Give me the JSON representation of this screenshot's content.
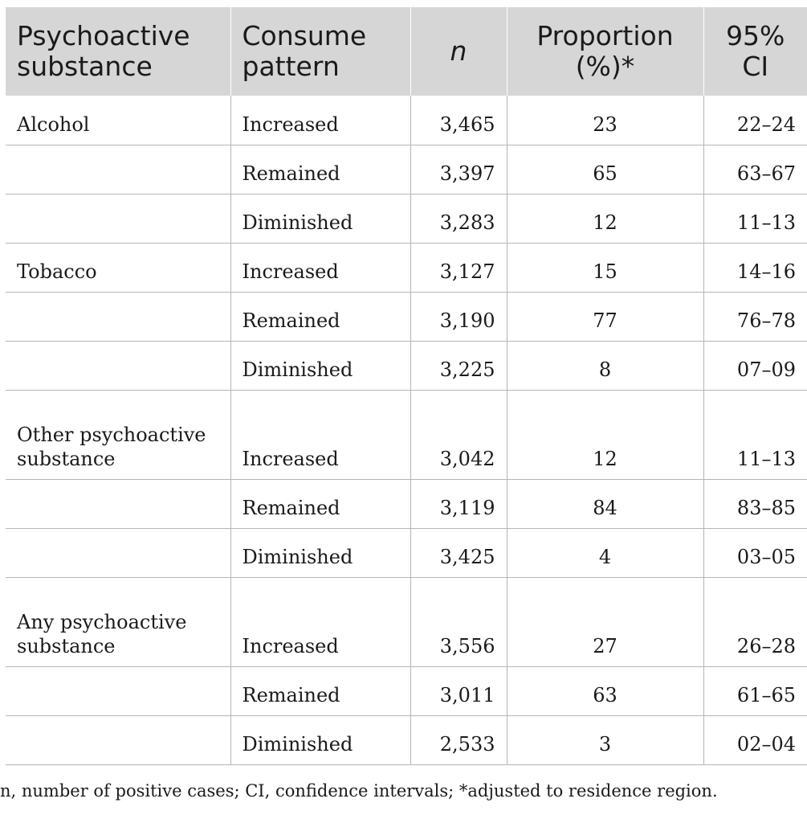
{
  "table": {
    "headers": [
      "Psychoactive substance",
      "Consume pattern",
      "n",
      "Proportion (%)*",
      "95% CI"
    ],
    "rows": [
      {
        "substance": "Alcohol",
        "pattern": "Increased",
        "n": "3,465",
        "proportion": "23",
        "ci": "22–24"
      },
      {
        "substance": "",
        "pattern": "Remained",
        "n": "3,397",
        "proportion": "65",
        "ci": "63–67"
      },
      {
        "substance": "",
        "pattern": "Diminished",
        "n": "3,283",
        "proportion": "12",
        "ci": "11–13"
      },
      {
        "substance": "Tobacco",
        "pattern": "Increased",
        "n": "3,127",
        "proportion": "15",
        "ci": "14–16"
      },
      {
        "substance": "",
        "pattern": "Remained",
        "n": "3,190",
        "proportion": "77",
        "ci": "76–78"
      },
      {
        "substance": "",
        "pattern": "Diminished",
        "n": "3,225",
        "proportion": "8",
        "ci": "07–09"
      },
      {
        "substance": "Other psychoactive substance",
        "pattern": "Increased",
        "n": "3,042",
        "proportion": "12",
        "ci": "11–13"
      },
      {
        "substance": "",
        "pattern": "Remained",
        "n": "3,119",
        "proportion": "84",
        "ci": "83–85"
      },
      {
        "substance": "",
        "pattern": "Diminished",
        "n": "3,425",
        "proportion": "4",
        "ci": "03–05"
      },
      {
        "substance": "Any psychoactive substance",
        "pattern": "Increased",
        "n": "3,556",
        "proportion": "27",
        "ci": "26–28"
      },
      {
        "substance": "",
        "pattern": "Remained",
        "n": "3,011",
        "proportion": "63",
        "ci": "61–65"
      },
      {
        "substance": "",
        "pattern": "Diminished",
        "n": "2,533",
        "proportion": "3",
        "ci": "02–04"
      }
    ]
  },
  "footnote": "n, number of positive cases; CI, confidence intervals; *adjusted to residence region.",
  "colors": {
    "header_bg": "#d6d6d6",
    "grid_line": "#b5b5b5",
    "text": "#1a1a1a"
  }
}
